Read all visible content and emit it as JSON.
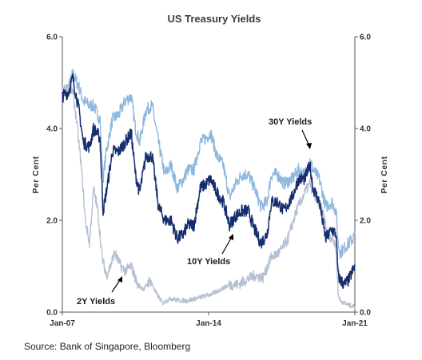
{
  "chart_data": {
    "type": "line",
    "title": "US Treasury Yields",
    "ylabel": "Per Cent",
    "ylabel_right": "Per Cent",
    "ylim": [
      0,
      6
    ],
    "yticks": [
      "0.0",
      "2.0",
      "4.0",
      "6.0"
    ],
    "xlim": [
      2007.0,
      2021.0
    ],
    "xticks": [
      {
        "x": 2007.0,
        "label": "Jan-07"
      },
      {
        "x": 2014.0,
        "label": "Jan-14"
      },
      {
        "x": 2021.0,
        "label": "Jan-21"
      }
    ],
    "source": "Source: Bank of Singapore, Bloomberg",
    "series": [
      {
        "name": "30Y Yields",
        "color": "#8fb8e0",
        "x": [
          2007.0,
          2007.3,
          2007.5,
          2007.8,
          2008.0,
          2008.3,
          2008.5,
          2008.8,
          2008.95,
          2009.1,
          2009.4,
          2009.7,
          2010.0,
          2010.3,
          2010.5,
          2010.7,
          2011.0,
          2011.3,
          2011.6,
          2011.9,
          2012.2,
          2012.5,
          2012.8,
          2013.0,
          2013.3,
          2013.6,
          2013.9,
          2014.1,
          2014.4,
          2014.7,
          2015.0,
          2015.3,
          2015.6,
          2015.9,
          2016.2,
          2016.5,
          2016.8,
          2017.0,
          2017.3,
          2017.6,
          2018.0,
          2018.3,
          2018.6,
          2018.85,
          2019.0,
          2019.3,
          2019.6,
          2019.9,
          2020.1,
          2020.2,
          2020.3,
          2020.5,
          2020.7,
          2020.9,
          2021.0
        ],
        "y": [
          4.8,
          4.9,
          5.2,
          4.9,
          4.6,
          4.5,
          4.5,
          4.2,
          2.9,
          3.5,
          4.2,
          4.3,
          4.6,
          4.7,
          4.0,
          3.7,
          4.4,
          4.5,
          3.7,
          3.0,
          3.2,
          2.7,
          2.9,
          3.1,
          3.1,
          3.7,
          3.8,
          3.9,
          3.4,
          3.2,
          2.5,
          2.8,
          3.0,
          3.0,
          2.7,
          2.3,
          2.4,
          3.0,
          3.0,
          2.8,
          2.9,
          3.1,
          3.0,
          3.3,
          3.1,
          2.9,
          2.3,
          2.4,
          2.2,
          1.5,
          1.3,
          1.4,
          1.5,
          1.6,
          1.7
        ]
      },
      {
        "name": "10Y Yields",
        "color": "#152d6e",
        "x": [
          2007.0,
          2007.3,
          2007.5,
          2007.8,
          2008.0,
          2008.3,
          2008.5,
          2008.8,
          2008.95,
          2009.1,
          2009.4,
          2009.7,
          2010.0,
          2010.3,
          2010.5,
          2010.7,
          2011.0,
          2011.3,
          2011.6,
          2011.9,
          2012.2,
          2012.5,
          2012.8,
          2013.0,
          2013.3,
          2013.6,
          2013.9,
          2014.1,
          2014.4,
          2014.7,
          2015.0,
          2015.3,
          2015.6,
          2015.9,
          2016.2,
          2016.5,
          2016.8,
          2017.0,
          2017.3,
          2017.6,
          2018.0,
          2018.3,
          2018.6,
          2018.85,
          2019.0,
          2019.3,
          2019.6,
          2019.9,
          2020.1,
          2020.2,
          2020.3,
          2020.5,
          2020.7,
          2020.9,
          2021.0
        ],
        "y": [
          4.7,
          4.8,
          5.1,
          4.4,
          3.7,
          3.6,
          4.0,
          3.8,
          2.2,
          2.6,
          3.5,
          3.5,
          3.7,
          3.9,
          3.0,
          2.6,
          3.4,
          3.4,
          2.3,
          2.0,
          2.0,
          1.6,
          1.7,
          1.9,
          1.9,
          2.7,
          2.8,
          2.9,
          2.6,
          2.4,
          1.9,
          2.1,
          2.2,
          2.2,
          1.8,
          1.5,
          1.7,
          2.4,
          2.4,
          2.2,
          2.5,
          2.9,
          2.9,
          3.2,
          2.7,
          2.4,
          1.6,
          1.8,
          1.7,
          0.8,
          0.7,
          0.6,
          0.7,
          0.9,
          1.0
        ]
      },
      {
        "name": "2Y Yields",
        "color": "#b5c0d3",
        "x": [
          2007.0,
          2007.3,
          2007.5,
          2007.7,
          2007.9,
          2008.1,
          2008.3,
          2008.5,
          2008.7,
          2008.9,
          2009.1,
          2009.3,
          2009.5,
          2009.8,
          2010.0,
          2010.3,
          2010.6,
          2010.9,
          2011.2,
          2011.5,
          2011.8,
          2012.2,
          2012.6,
          2013.0,
          2013.4,
          2013.8,
          2014.2,
          2014.6,
          2015.0,
          2015.4,
          2015.8,
          2016.2,
          2016.6,
          2017.0,
          2017.4,
          2017.8,
          2018.2,
          2018.6,
          2018.85,
          2019.1,
          2019.4,
          2019.7,
          2019.95,
          2020.1,
          2020.2,
          2020.3,
          2020.5,
          2020.7,
          2021.0
        ],
        "y": [
          4.8,
          4.9,
          4.8,
          4.1,
          3.2,
          2.0,
          1.5,
          2.7,
          2.2,
          1.2,
          0.8,
          1.0,
          1.3,
          1.0,
          0.9,
          1.0,
          0.6,
          0.5,
          0.7,
          0.4,
          0.2,
          0.3,
          0.25,
          0.25,
          0.3,
          0.35,
          0.4,
          0.5,
          0.6,
          0.6,
          0.7,
          0.8,
          0.75,
          1.2,
          1.3,
          1.6,
          2.2,
          2.6,
          2.8,
          2.5,
          2.3,
          1.7,
          1.6,
          1.4,
          0.4,
          0.25,
          0.2,
          0.15,
          0.12
        ]
      }
    ],
    "annotations": [
      {
        "text": "30Y Yields",
        "series": "30Y Yields"
      },
      {
        "text": "10Y Yields",
        "series": "10Y Yields"
      },
      {
        "text": "2Y Yields",
        "series": "2Y Yields"
      }
    ],
    "grid": false,
    "legend": "none"
  }
}
